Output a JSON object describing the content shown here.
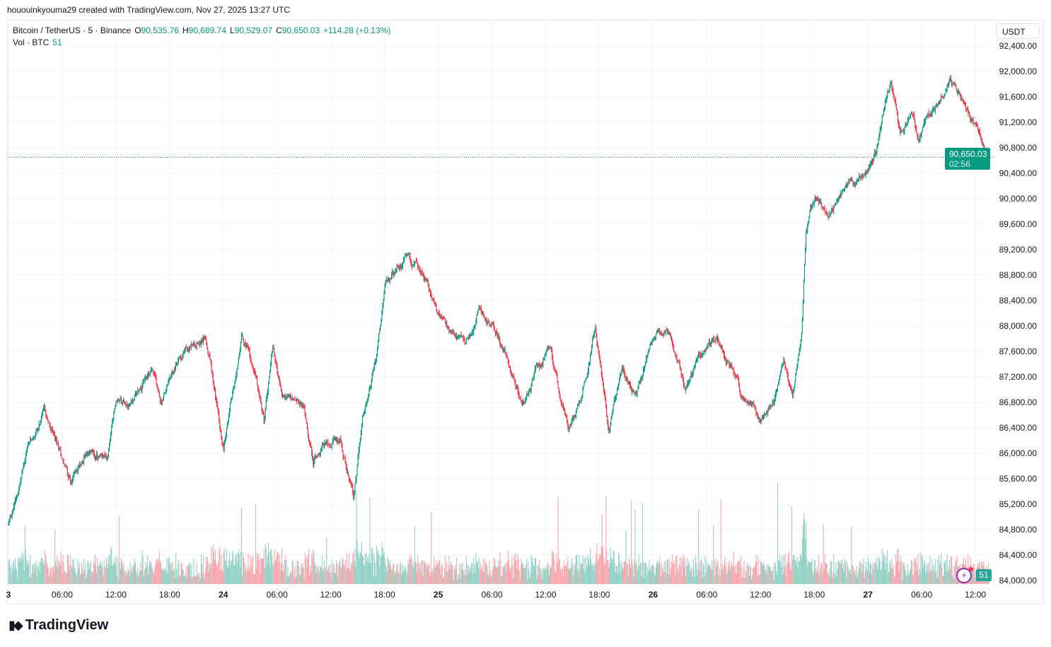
{
  "header": {
    "caption": "hououinkyouma29 created with TradingView.com, Nov 27, 2025 13:27 UTC"
  },
  "legend": {
    "symbol": "Bitcoin / TetherUS · 5 · Binance",
    "open_label": "O",
    "open": "90,535.76",
    "high_label": "H",
    "high": "90,689.74",
    "low_label": "L",
    "low": "90,529.07",
    "close_label": "C",
    "close": "90,650.03",
    "change": "+114.28 (+0.13%)",
    "vol_label": "Vol · BTC",
    "vol": "51"
  },
  "price_axis": {
    "currency": "USDT",
    "last_price": "90,650.03",
    "countdown": "02:56",
    "vol_badge": "51"
  },
  "logo": {
    "text": "TradingView"
  },
  "colors": {
    "up": "#089981",
    "down": "#f23645",
    "vol_up": "#93d2c6",
    "vol_down": "#f7a8ae",
    "grid": "#f0f3fa",
    "last_line": "#089981"
  },
  "chart_data": {
    "type": "candlestick",
    "interval": "5m",
    "ylim": [
      84000,
      92400
    ],
    "y_ticks": [
      "92,400.00",
      "92,000.00",
      "91,600.00",
      "91,200.00",
      "90,800.00",
      "90,400.00",
      "90,000.00",
      "89,600.00",
      "89,200.00",
      "88,800.00",
      "88,400.00",
      "88,000.00",
      "87,600.00",
      "87,200.00",
      "86,800.00",
      "86,400.00",
      "86,000.00",
      "85,600.00",
      "85,200.00",
      "84,800.00",
      "84,400.00",
      "84,000.00"
    ],
    "x_ticks": [
      "3",
      "06:00",
      "12:00",
      "18:00",
      "24",
      "06:00",
      "12:00",
      "18:00",
      "25",
      "06:00",
      "12:00",
      "18:00",
      "26",
      "06:00",
      "12:00",
      "18:00",
      "27",
      "06:00",
      "12:00"
    ],
    "xlim": [
      "2025-11-23T00:00",
      "2025-11-27T13:25"
    ],
    "grid": true,
    "last_price": 90650.03,
    "price_path": [
      [
        "2025-11-23T00:00",
        84900
      ],
      [
        "2025-11-23T01:00",
        85340
      ],
      [
        "2025-11-23T02:00",
        86010
      ],
      [
        "2025-11-23T04:00",
        86620
      ],
      [
        "2025-11-23T05:00",
        86230
      ],
      [
        "2025-11-23T07:00",
        85570
      ],
      [
        "2025-11-23T08:30",
        86010
      ],
      [
        "2025-11-23T11:00",
        85900
      ],
      [
        "2025-11-23T12:00",
        86790
      ],
      [
        "2025-11-23T14:00",
        86900
      ],
      [
        "2025-11-23T16:00",
        87340
      ],
      [
        "2025-11-23T17:00",
        86790
      ],
      [
        "2025-11-23T19:30",
        87620
      ],
      [
        "2025-11-23T22:00",
        87900
      ],
      [
        "2025-11-23T22:30",
        87570
      ],
      [
        "2025-11-24T00:00",
        86010
      ],
      [
        "2025-11-24T01:00",
        86900
      ],
      [
        "2025-11-24T02:00",
        87900
      ],
      [
        "2025-11-24T03:30",
        87340
      ],
      [
        "2025-11-24T04:30",
        86510
      ],
      [
        "2025-11-24T05:30",
        87730
      ],
      [
        "2025-11-24T06:30",
        86900
      ],
      [
        "2025-11-24T09:00",
        86680
      ],
      [
        "2025-11-24T10:00",
        85900
      ],
      [
        "2025-11-24T11:30",
        86230
      ],
      [
        "2025-11-24T13:00",
        86230
      ],
      [
        "2025-11-24T14:30",
        85340
      ],
      [
        "2025-11-24T15:30",
        86570
      ],
      [
        "2025-11-24T17:00",
        87450
      ],
      [
        "2025-11-24T18:00",
        88570
      ],
      [
        "2025-11-24T20:30",
        89120
      ],
      [
        "2025-11-24T22:30",
        88730
      ],
      [
        "2025-11-25T00:00",
        88230
      ],
      [
        "2025-11-25T01:30",
        87790
      ],
      [
        "2025-11-25T03:00",
        87680
      ],
      [
        "2025-11-25T04:30",
        88230
      ],
      [
        "2025-11-25T06:30",
        87900
      ],
      [
        "2025-11-25T08:00",
        87340
      ],
      [
        "2025-11-25T09:30",
        86730
      ],
      [
        "2025-11-25T11:00",
        87340
      ],
      [
        "2025-11-25T12:30",
        87570
      ],
      [
        "2025-11-25T14:30",
        86340
      ],
      [
        "2025-11-25T16:00",
        86900
      ],
      [
        "2025-11-25T17:30",
        87900
      ],
      [
        "2025-11-25T19:00",
        86340
      ],
      [
        "2025-11-25T20:30",
        87340
      ],
      [
        "2025-11-25T22:00",
        86900
      ],
      [
        "2025-11-25T23:30",
        87680
      ],
      [
        "2025-11-26T01:30",
        88010
      ],
      [
        "2025-11-26T03:30",
        87010
      ],
      [
        "2025-11-26T05:00",
        87570
      ],
      [
        "2025-11-26T07:00",
        87790
      ],
      [
        "2025-11-26T08:30",
        87340
      ],
      [
        "2025-11-26T10:00",
        86790
      ],
      [
        "2025-11-26T12:00",
        86570
      ],
      [
        "2025-11-26T13:30",
        86900
      ],
      [
        "2025-11-26T14:30",
        87450
      ],
      [
        "2025-11-26T15:30",
        86790
      ],
      [
        "2025-11-26T16:30",
        87900
      ],
      [
        "2025-11-26T17:00",
        89460
      ],
      [
        "2025-11-26T18:00",
        90010
      ],
      [
        "2025-11-26T19:30",
        89790
      ],
      [
        "2025-11-26T21:00",
        90120
      ],
      [
        "2025-11-26T23:30",
        90290
      ],
      [
        "2025-11-27T01:00",
        90790
      ],
      [
        "2025-11-27T01:30",
        91230
      ],
      [
        "2025-11-27T02:30",
        91840
      ],
      [
        "2025-11-27T03:30",
        91120
      ],
      [
        "2025-11-27T05:00",
        91340
      ],
      [
        "2025-11-27T05:30",
        90960
      ],
      [
        "2025-11-27T07:00",
        91340
      ],
      [
        "2025-11-27T09:00",
        91840
      ],
      [
        "2025-11-27T11:00",
        91340
      ],
      [
        "2025-11-27T12:30",
        91010
      ],
      [
        "2025-11-27T13:25",
        90650
      ]
    ]
  }
}
